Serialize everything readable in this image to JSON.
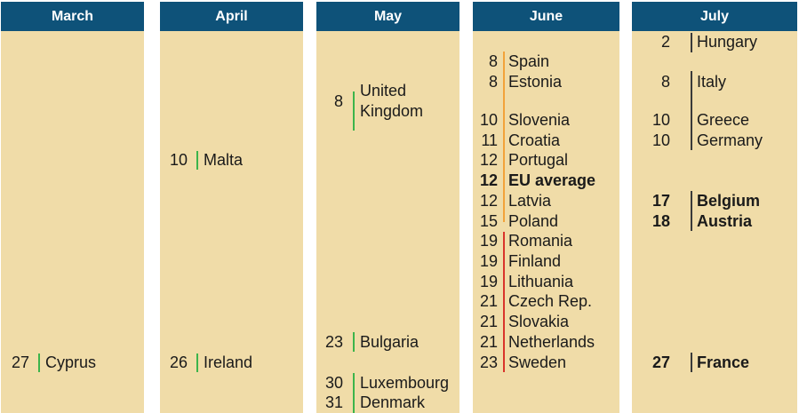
{
  "colors": {
    "header_bg": "#0e5279",
    "column_bg": "#f0dca8",
    "line_green": "#3cb44b",
    "line_orange": "#f2a33a",
    "line_red": "#d9342b",
    "line_dark": "#3a3a3a"
  },
  "months": [
    {
      "label": "March",
      "entries": [
        {
          "day": "27",
          "lines": [
            "Cyprus"
          ],
          "bold": false
        }
      ]
    },
    {
      "label": "April",
      "entries": [
        {
          "day": "10",
          "lines": [
            "Malta"
          ],
          "bold": false
        },
        {
          "day": "26",
          "lines": [
            "Ireland"
          ],
          "bold": false
        }
      ]
    },
    {
      "label": "May",
      "entries": [
        {
          "day": "8",
          "lines": [
            "United",
            "Kingdom"
          ],
          "bold": false
        },
        {
          "day": "23",
          "lines": [
            "Bulgaria"
          ],
          "bold": false
        },
        {
          "day": "30",
          "lines": [
            "Luxembourg"
          ],
          "bold": false
        },
        {
          "day": "31",
          "lines": [
            "Denmark"
          ],
          "bold": false
        }
      ]
    },
    {
      "label": "June",
      "entries": [
        {
          "day": "8",
          "lines": [
            "Spain"
          ],
          "bold": false
        },
        {
          "day": "8",
          "lines": [
            "Estonia"
          ],
          "bold": false
        },
        {
          "day": "10",
          "lines": [
            "Slovenia"
          ],
          "bold": false
        },
        {
          "day": "11",
          "lines": [
            "Croatia"
          ],
          "bold": false
        },
        {
          "day": "12",
          "lines": [
            "Portugal"
          ],
          "bold": false
        },
        {
          "day": "12",
          "lines": [
            "EU average"
          ],
          "bold": true
        },
        {
          "day": "12",
          "lines": [
            "Latvia"
          ],
          "bold": false
        },
        {
          "day": "15",
          "lines": [
            "Poland"
          ],
          "bold": false
        },
        {
          "day": "19",
          "lines": [
            "Romania"
          ],
          "bold": false
        },
        {
          "day": "19",
          "lines": [
            "Finland"
          ],
          "bold": false
        },
        {
          "day": "19",
          "lines": [
            "Lithuania"
          ],
          "bold": false
        },
        {
          "day": "21",
          "lines": [
            "Czech Rep."
          ],
          "bold": false
        },
        {
          "day": "21",
          "lines": [
            "Slovakia"
          ],
          "bold": false
        },
        {
          "day": "21",
          "lines": [
            "Netherlands"
          ],
          "bold": false
        },
        {
          "day": "23",
          "lines": [
            "Sweden"
          ],
          "bold": false
        }
      ]
    },
    {
      "label": "July",
      "entries": [
        {
          "day": "2",
          "lines": [
            "Hungary"
          ],
          "bold": false
        },
        {
          "day": "8",
          "lines": [
            "Italy"
          ],
          "bold": false
        },
        {
          "day": "10",
          "lines": [
            "Greece"
          ],
          "bold": false
        },
        {
          "day": "10",
          "lines": [
            "Germany"
          ],
          "bold": false
        },
        {
          "day": "17",
          "lines": [
            "Belgium"
          ],
          "bold": true
        },
        {
          "day": "18",
          "lines": [
            "Austria"
          ],
          "bold": true
        },
        {
          "day": "27",
          "lines": [
            "France"
          ],
          "bold": true
        }
      ]
    }
  ]
}
